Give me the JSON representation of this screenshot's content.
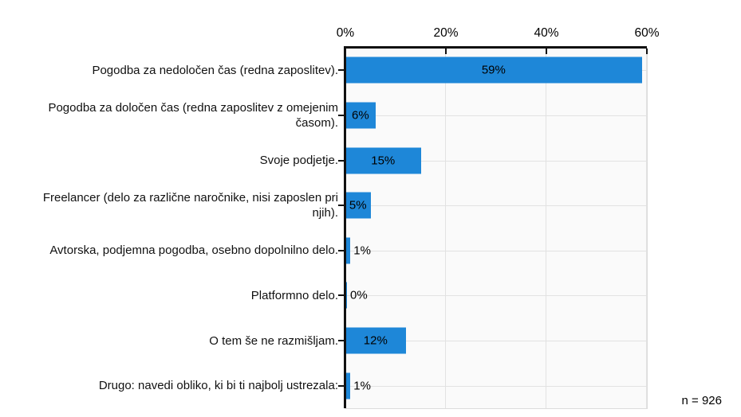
{
  "chart_data": {
    "type": "bar",
    "orientation": "horizontal",
    "title": "",
    "categories": [
      "Pogodba za nedoločen čas (redna zaposlitev).",
      "Pogodba za določen čas (redna zaposlitev z omejenim\nčasom).",
      "Svoje podjetje.",
      "Freelancer (delo za različne naročnike, nisi zaposlen pri\nnjih).",
      "Avtorska, podjemna pogodba, osebno dopolnilno delo.",
      "Platformno delo.",
      "O tem še ne razmišljam.",
      "Drugo: navedi obliko, ki bi ti najbolj ustrezala:"
    ],
    "values": [
      59,
      6,
      15,
      5,
      1,
      0,
      12,
      1
    ],
    "value_labels": [
      "59%",
      "6%",
      "15%",
      "5%",
      "1%",
      "0%",
      "12%",
      "1%"
    ],
    "x_axis": {
      "position": "top",
      "tick_labels": [
        "0%",
        "20%",
        "40%",
        "60%"
      ],
      "tick_values": [
        0,
        20,
        40,
        60
      ],
      "min": 0,
      "max": 60
    },
    "grid": true,
    "legend_position": "none",
    "annotation": "n = 926",
    "colors": {
      "bar": "#1e87d8",
      "plot_background": "#fafafa",
      "gridline": "#e2e2e2",
      "axis": "#111111",
      "text": "#000000"
    }
  }
}
